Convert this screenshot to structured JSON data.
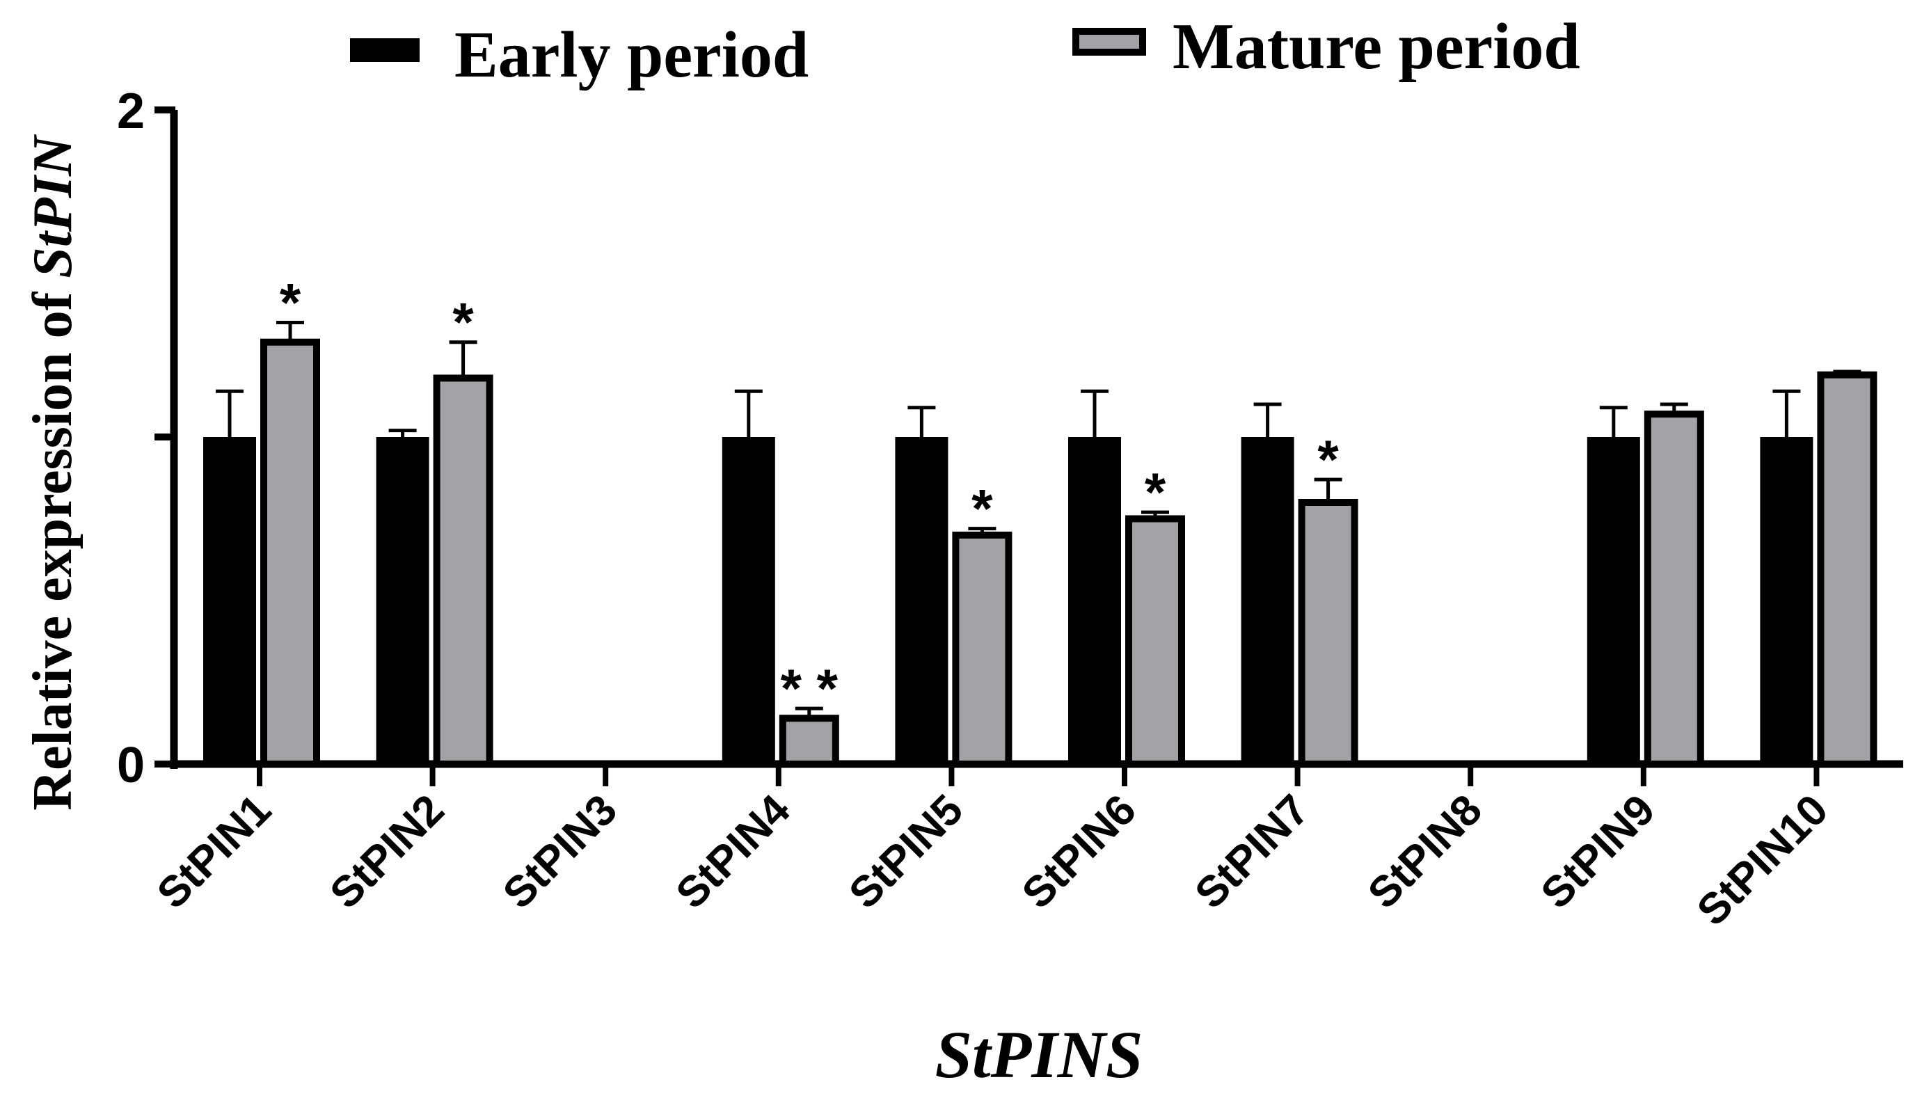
{
  "chart_data": {
    "type": "bar",
    "title": "",
    "xlabel": "StPINS",
    "ylabel_prefix": "Relative expression of ",
    "ylabel_italic": "StPIN",
    "ylim": [
      0,
      2
    ],
    "yticks": [
      {
        "value": 0,
        "label": "0"
      },
      {
        "value": 1,
        "label": ""
      },
      {
        "value": 2,
        "label": "2"
      }
    ],
    "categories": [
      "StPIN1",
      "StPIN2",
      "StPIN3",
      "StPIN4",
      "StPIN5",
      "StPIN6",
      "StPIN7",
      "StPIN8",
      "StPIN9",
      "StPIN10"
    ],
    "series": [
      {
        "name": "Early period",
        "color": "#000000",
        "values": [
          1.0,
          1.0,
          null,
          1.0,
          1.0,
          1.0,
          1.0,
          null,
          1.0,
          1.0
        ],
        "errors": [
          0.14,
          0.02,
          null,
          0.14,
          0.09,
          0.14,
          0.1,
          null,
          0.09,
          0.14
        ],
        "significance": [
          "",
          "",
          "",
          "",
          "",
          "",
          "",
          "",
          "",
          ""
        ]
      },
      {
        "name": "Mature period",
        "color": "#a3a3a6",
        "values": [
          1.29,
          1.18,
          null,
          0.14,
          0.7,
          0.75,
          0.8,
          null,
          1.07,
          1.19
        ],
        "errors": [
          0.06,
          0.11,
          null,
          0.03,
          0.02,
          0.02,
          0.07,
          null,
          0.03,
          0.01
        ],
        "significance": [
          "*",
          "*",
          "",
          "* *",
          "*",
          "*",
          "*",
          "",
          "",
          ""
        ]
      }
    ],
    "legend": "top"
  }
}
